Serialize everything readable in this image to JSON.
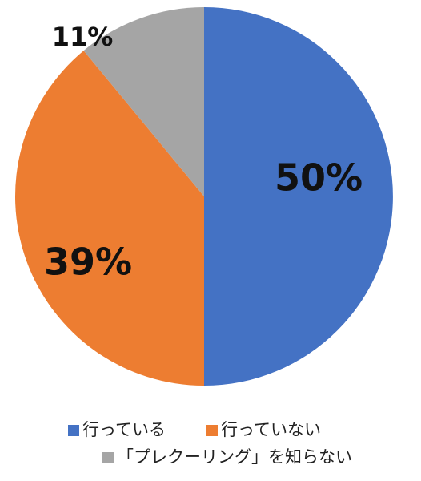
{
  "chart_data": {
    "type": "pie",
    "categories": [
      "行っている",
      "行っていない",
      "「プレクーリング」を知らない"
    ],
    "values": [
      50,
      39,
      11
    ],
    "value_labels": [
      "50%",
      "39%",
      "11%"
    ],
    "colors": [
      "#4472c4",
      "#ed7d31",
      "#a5a5a5"
    ],
    "legend": "bottom"
  }
}
